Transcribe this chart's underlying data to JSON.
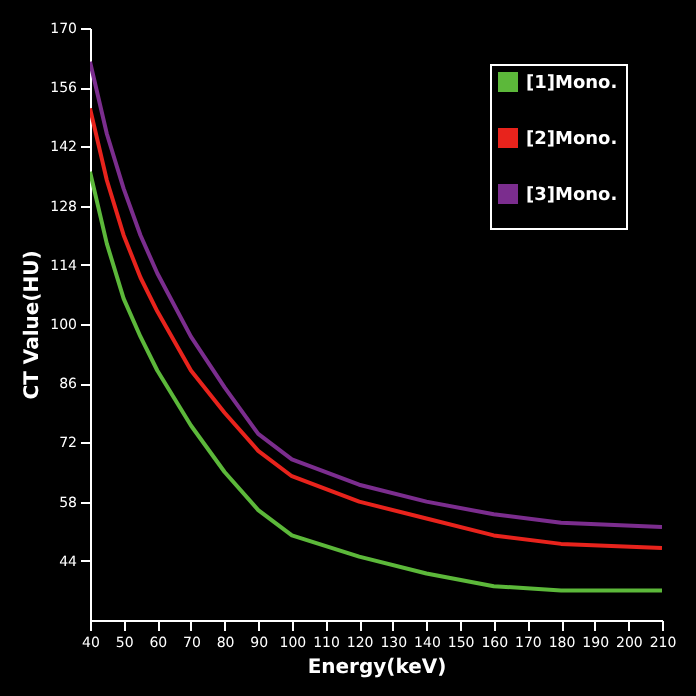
{
  "chart_data": {
    "type": "line",
    "xlabel": "Energy(keV)",
    "ylabel": "CT Value(HU)",
    "x": [
      40,
      45,
      50,
      55,
      60,
      70,
      80,
      90,
      100,
      120,
      140,
      160,
      180,
      210
    ],
    "series": [
      {
        "name": "[1]Mono.",
        "color": "#5cb83a",
        "values": [
          136,
          119,
          106,
          97,
          89,
          76,
          65,
          56,
          50,
          45,
          41,
          38,
          37,
          37
        ]
      },
      {
        "name": "[2]Mono.",
        "color": "#e8231c",
        "values": [
          151,
          134,
          121,
          111,
          103,
          89,
          79,
          70,
          64,
          58,
          54,
          50,
          48,
          47
        ]
      },
      {
        "name": "[3]Mono.",
        "color": "#7b2d8e",
        "values": [
          162,
          145,
          132,
          121,
          112,
          97,
          85,
          74,
          68,
          62,
          58,
          55,
          53,
          52
        ]
      }
    ],
    "xlim": [
      40,
      210
    ],
    "xticks": [
      40,
      50,
      60,
      70,
      80,
      90,
      100,
      110,
      120,
      130,
      140,
      150,
      160,
      170,
      180,
      190,
      200,
      210
    ],
    "ylim": [
      30,
      170
    ],
    "yticks": [
      44,
      58,
      72,
      86,
      100,
      114,
      128,
      142,
      156,
      170
    ],
    "grid": false,
    "legend": "top right",
    "marker": "none",
    "line_style": "solid"
  }
}
